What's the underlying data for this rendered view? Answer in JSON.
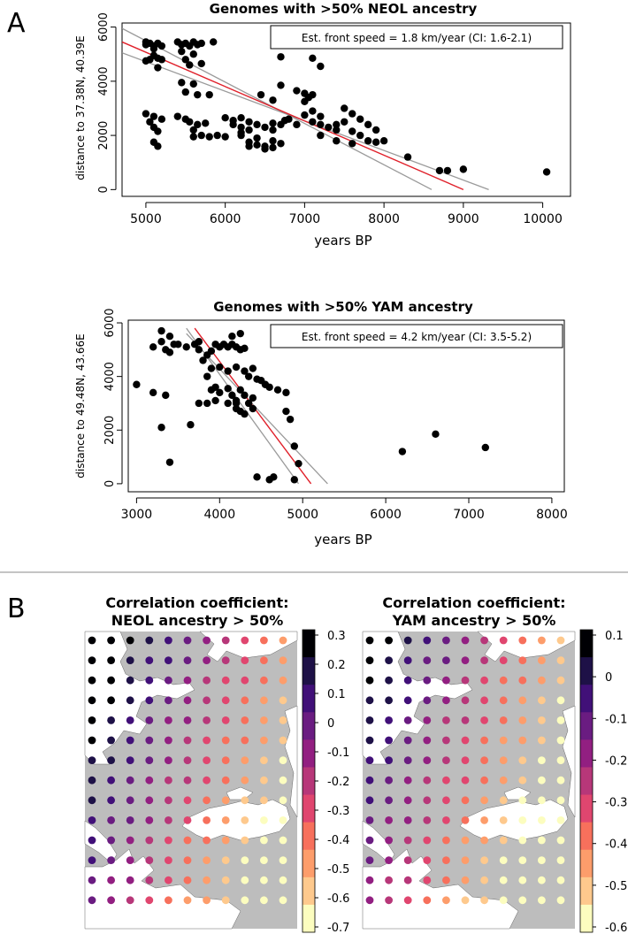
{
  "figure": {
    "panel_a_letter": "A",
    "panel_b_letter": "B"
  },
  "chart_data": [
    {
      "type": "scatter",
      "title": "Genomes with >50% NEOL ancestry",
      "xlabel": "years BP",
      "ylabel": "distance to 37.38N, 40.39E",
      "xlim": [
        4700,
        10350
      ],
      "ylim": [
        -250,
        6150
      ],
      "xticks": [
        5000,
        6000,
        7000,
        8000,
        9000,
        10000
      ],
      "yticks": [
        0,
        2000,
        4000,
        6000
      ],
      "annotation": "Est. front speed = 1.8 km/year (CI: 1.6-2.1)",
      "grid": false,
      "regression": {
        "x0": 4700,
        "y0": 5450,
        "x_at_zero": 9000
      },
      "ci_lines": [
        {
          "x0": 4700,
          "y0": 5950,
          "x_at_zero": 8600
        },
        {
          "x0": 4700,
          "y0": 5050,
          "x_at_zero": 9320
        }
      ],
      "points": [
        [
          5000,
          5450
        ],
        [
          5050,
          5400
        ],
        [
          5100,
          5300
        ],
        [
          5150,
          5400
        ],
        [
          5000,
          5350
        ],
        [
          5100,
          5200
        ],
        [
          5200,
          5300
        ],
        [
          5100,
          4950
        ],
        [
          5150,
          4850
        ],
        [
          5050,
          4800
        ],
        [
          5200,
          4800
        ],
        [
          5000,
          4750
        ],
        [
          5150,
          4500
        ],
        [
          5400,
          5450
        ],
        [
          5500,
          5400
        ],
        [
          5600,
          5450
        ],
        [
          5700,
          5400
        ],
        [
          5450,
          5350
        ],
        [
          5550,
          5300
        ],
        [
          5650,
          5350
        ],
        [
          5850,
          5450
        ],
        [
          5450,
          5100
        ],
        [
          5600,
          5000
        ],
        [
          5500,
          4800
        ],
        [
          5550,
          4600
        ],
        [
          5700,
          4650
        ],
        [
          5450,
          3950
        ],
        [
          5600,
          3900
        ],
        [
          5500,
          3600
        ],
        [
          5650,
          3500
        ],
        [
          5800,
          3500
        ],
        [
          5000,
          2800
        ],
        [
          5100,
          2700
        ],
        [
          5050,
          2500
        ],
        [
          5200,
          2600
        ],
        [
          5100,
          2300
        ],
        [
          5150,
          2150
        ],
        [
          5100,
          1750
        ],
        [
          5150,
          1600
        ],
        [
          5400,
          2700
        ],
        [
          5500,
          2600
        ],
        [
          5550,
          2500
        ],
        [
          5650,
          2400
        ],
        [
          5750,
          2450
        ],
        [
          5600,
          2200
        ],
        [
          5700,
          2000
        ],
        [
          5900,
          2000
        ],
        [
          5600,
          1950
        ],
        [
          5800,
          1950
        ],
        [
          6000,
          1950
        ],
        [
          6000,
          2650
        ],
        [
          6100,
          2550
        ],
        [
          6200,
          2650
        ],
        [
          6300,
          2500
        ],
        [
          6100,
          2400
        ],
        [
          6200,
          2300
        ],
        [
          6300,
          2200
        ],
        [
          6400,
          2400
        ],
        [
          6500,
          2300
        ],
        [
          6600,
          2200
        ],
        [
          6200,
          2000
        ],
        [
          6300,
          1750
        ],
        [
          6400,
          1650
        ],
        [
          6500,
          1600
        ],
        [
          6600,
          1550
        ],
        [
          6300,
          1600
        ],
        [
          6500,
          1500
        ],
        [
          6400,
          1900
        ],
        [
          6600,
          1800
        ],
        [
          6700,
          1700
        ],
        [
          6200,
          2100
        ],
        [
          6600,
          2450
        ],
        [
          6700,
          2400
        ],
        [
          6750,
          2550
        ],
        [
          6700,
          4900
        ],
        [
          7100,
          4850
        ],
        [
          7200,
          4550
        ],
        [
          6700,
          3850
        ],
        [
          6900,
          3650
        ],
        [
          7000,
          3550
        ],
        [
          7100,
          3500
        ],
        [
          7050,
          3400
        ],
        [
          7000,
          3250
        ],
        [
          6450,
          3500
        ],
        [
          6600,
          3300
        ],
        [
          7100,
          2900
        ],
        [
          7000,
          2750
        ],
        [
          7200,
          2700
        ],
        [
          7100,
          2500
        ],
        [
          7200,
          2400
        ],
        [
          7300,
          2300
        ],
        [
          7400,
          2200
        ],
        [
          6900,
          2400
        ],
        [
          6800,
          2600
        ],
        [
          7500,
          3000
        ],
        [
          7600,
          2800
        ],
        [
          7700,
          2600
        ],
        [
          7500,
          2500
        ],
        [
          7400,
          2400
        ],
        [
          7800,
          2400
        ],
        [
          7900,
          2200
        ],
        [
          7600,
          2150
        ],
        [
          7700,
          2000
        ],
        [
          7800,
          1800
        ],
        [
          7900,
          1750
        ],
        [
          8000,
          1800
        ],
        [
          7600,
          1700
        ],
        [
          7400,
          1800
        ],
        [
          7200,
          2000
        ],
        [
          8300,
          1200
        ],
        [
          8700,
          700
        ],
        [
          8800,
          700
        ],
        [
          9000,
          750
        ],
        [
          10050,
          650
        ]
      ]
    },
    {
      "type": "scatter",
      "title": "Genomes with >50% YAM ancestry",
      "xlabel": "years BP",
      "ylabel": "distance to 49.48N, 43.66E",
      "xlim": [
        2900,
        8150
      ],
      "ylim": [
        -300,
        6100
      ],
      "xticks": [
        3000,
        4000,
        5000,
        6000,
        7000,
        8000
      ],
      "yticks": [
        0,
        2000,
        4000,
        6000
      ],
      "annotation": "Est. front speed = 4.2 km/year (CI: 3.5-5.2)",
      "grid": false,
      "regression": {
        "x0": 3700,
        "y0": 5800,
        "x_at_zero": 5100
      },
      "ci_lines": [
        {
          "x0": 3600,
          "y0": 5800,
          "x_at_zero": 4950
        },
        {
          "x0": 3600,
          "y0": 5600,
          "x_at_zero": 5300
        }
      ],
      "points": [
        [
          3300,
          5700
        ],
        [
          3400,
          5500
        ],
        [
          3300,
          5300
        ],
        [
          3450,
          5200
        ],
        [
          3350,
          5000
        ],
        [
          3200,
          5100
        ],
        [
          3500,
          5200
        ],
        [
          3600,
          5100
        ],
        [
          3400,
          4900
        ],
        [
          3750,
          5300
        ],
        [
          3700,
          5200
        ],
        [
          3750,
          5000
        ],
        [
          3850,
          4800
        ],
        [
          3900,
          4950
        ],
        [
          4000,
          5100
        ],
        [
          4050,
          5200
        ],
        [
          4100,
          5100
        ],
        [
          4150,
          5200
        ],
        [
          4200,
          5100
        ],
        [
          4250,
          5000
        ],
        [
          4300,
          5050
        ],
        [
          4250,
          5600
        ],
        [
          4150,
          5500
        ],
        [
          3950,
          5200
        ],
        [
          3800,
          4600
        ],
        [
          3900,
          4300
        ],
        [
          4000,
          4350
        ],
        [
          4100,
          4200
        ],
        [
          4200,
          4350
        ],
        [
          4300,
          4200
        ],
        [
          4400,
          4300
        ],
        [
          4350,
          4000
        ],
        [
          4450,
          3900
        ],
        [
          4500,
          3850
        ],
        [
          4600,
          3600
        ],
        [
          4700,
          3500
        ],
        [
          4800,
          3400
        ],
        [
          4550,
          3700
        ],
        [
          3850,
          4000
        ],
        [
          3950,
          3600
        ],
        [
          3900,
          3500
        ],
        [
          4000,
          3400
        ],
        [
          4100,
          3550
        ],
        [
          4150,
          3300
        ],
        [
          4200,
          3100
        ],
        [
          4250,
          3500
        ],
        [
          4300,
          3300
        ],
        [
          4350,
          3000
        ],
        [
          4300,
          2600
        ],
        [
          4200,
          2800
        ],
        [
          4400,
          3200
        ],
        [
          3750,
          3000
        ],
        [
          3850,
          3000
        ],
        [
          3950,
          3100
        ],
        [
          4100,
          3000
        ],
        [
          4200,
          3000
        ],
        [
          4400,
          2800
        ],
        [
          4250,
          2700
        ],
        [
          3000,
          3700
        ],
        [
          3200,
          3400
        ],
        [
          3350,
          3300
        ],
        [
          3300,
          2100
        ],
        [
          3650,
          2200
        ],
        [
          3400,
          800
        ],
        [
          4450,
          250
        ],
        [
          4600,
          150
        ],
        [
          4650,
          250
        ],
        [
          4900,
          150
        ],
        [
          4950,
          750
        ],
        [
          4900,
          1400
        ],
        [
          4850,
          2400
        ],
        [
          4800,
          2700
        ],
        [
          6200,
          1200
        ],
        [
          6600,
          1850
        ],
        [
          7200,
          1350
        ]
      ]
    }
  ],
  "maps": [
    {
      "title_line1": "Correlation coefficient:",
      "title_line2": "NEOL ancestry > 50%",
      "colorbar_ticks": [
        "0.3",
        "0.2",
        "0.1",
        "0",
        "-0.1",
        "-0.2",
        "-0.3",
        "-0.4",
        "-0.5",
        "-0.6",
        "-0.7"
      ],
      "colors": [
        "#000004",
        "#1e1147",
        "#411078",
        "#6a1c81",
        "#921f81",
        "#b73779",
        "#e0466f",
        "#f7705c",
        "#fd9d6b",
        "#fec98d",
        "#fcfdbf"
      ]
    },
    {
      "title_line1": "Correlation coefficient:",
      "title_line2": "YAM ancestry > 50%",
      "colorbar_ticks": [
        "0.1",
        "0",
        "-0.1",
        "-0.2",
        "-0.3",
        "-0.4",
        "-0.5",
        "-0.6"
      ],
      "colors": [
        "#000004",
        "#1e1147",
        "#411078",
        "#6a1c81",
        "#921f81",
        "#b73779",
        "#e0466f",
        "#f7705c",
        "#fd9d6b",
        "#fec98d",
        "#fcfdbf"
      ]
    }
  ]
}
